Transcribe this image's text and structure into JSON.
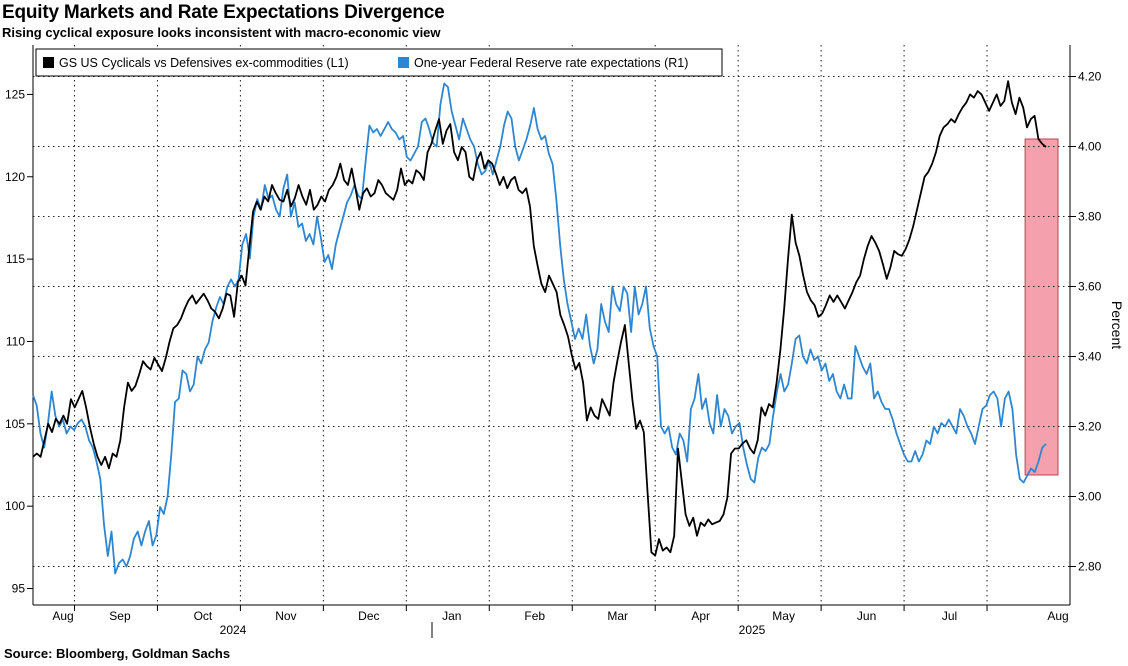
{
  "title": "Equity Markets and Rate Expectations Divergence",
  "subtitle": "Rising cyclical exposure looks inconsistent with macro-economic view",
  "source": "Source: Bloomberg, Goldman Sachs",
  "chart_data": {
    "type": "line",
    "x_tick_labels": [
      "Aug",
      "Sep",
      "Oct",
      "Nov",
      "Dec",
      "Jan",
      "Feb",
      "Mar",
      "Apr",
      "May",
      "Jun",
      "Jul",
      "Aug"
    ],
    "year_labels": [
      "2024",
      "2025"
    ],
    "left_axis": {
      "ticks": [
        95,
        100,
        105,
        110,
        115,
        120,
        125
      ],
      "ylim": [
        94,
        128
      ]
    },
    "right_axis": {
      "label": "Percent",
      "ticks": [
        "2.80",
        "3.00",
        "3.20",
        "3.40",
        "3.60",
        "3.80",
        "4.00",
        "4.20"
      ],
      "ylim": [
        2.69,
        4.29
      ]
    },
    "grid": true,
    "legend_position": "top-left",
    "highlight": {
      "x_start": 0.9615,
      "x_end": 1.0,
      "color": "#f4a0ad"
    },
    "series": [
      {
        "name": "GS US Cyclicals vs Defensives ex-commodities  (L1)",
        "axis": "left",
        "color": "#000000",
        "values": [
          103,
          103.2,
          103,
          104,
          105,
          104.5,
          105.3,
          105,
          105.5,
          105,
          106.5,
          106,
          106.5,
          107,
          106,
          104.8,
          103.8,
          103,
          102.5,
          103,
          102.3,
          103.2,
          103,
          104,
          106,
          107.5,
          107,
          107.3,
          108,
          108.8,
          108.5,
          108.3,
          109,
          108.6,
          108.2,
          109,
          110,
          110.8,
          111,
          111.4,
          112,
          112.5,
          112.8,
          112.3,
          112.6,
          112.9,
          112.5,
          112,
          111.8,
          111.4,
          112,
          112.9,
          112.8,
          111.5,
          113.6,
          114,
          113.4,
          115.7,
          117.9,
          118.5,
          118,
          118.8,
          118.5,
          119.5,
          119,
          118.6,
          118.5,
          119.2,
          118.2,
          118.7,
          119.5,
          118.8,
          118.3,
          119.2,
          118,
          118.3,
          118.8,
          118.5,
          119.2,
          119.5,
          120,
          120.8,
          119.8,
          119.5,
          120.5,
          119.3,
          118,
          119,
          119.3,
          118.8,
          119,
          119.8,
          119.5,
          119,
          118.8,
          118.6,
          119.2,
          120.5,
          119.5,
          119.8,
          119.6,
          120.4,
          120.2,
          119.8,
          121.5,
          122,
          122.8,
          123.5,
          122,
          122.8,
          123.2,
          121.5,
          121,
          121.8,
          121.5,
          120,
          119.8,
          121,
          121.5,
          120.5,
          121,
          120.8,
          120.2,
          119.5,
          120,
          119.3,
          119.8,
          120,
          119.2,
          119,
          119.3,
          118.2,
          115.8,
          114.6,
          113.5,
          113,
          114,
          113.5,
          113,
          111.6,
          111,
          110.3,
          109.2,
          108.3,
          108.7,
          107.5,
          105.2,
          106,
          105.5,
          105.3,
          106.5,
          106,
          105.5,
          107.5,
          108.8,
          110,
          111,
          108.7,
          106.4,
          104.7,
          105.2,
          104.5,
          100.8,
          97.2,
          97,
          98,
          97.3,
          97.5,
          97.2,
          98.2,
          103.5,
          101.5,
          99.5,
          98.8,
          99.3,
          98.2,
          99,
          98.8,
          99.2,
          98.9,
          99,
          99.1,
          99.5,
          100.5,
          103.2,
          103.5,
          103.5,
          103.8,
          104,
          103.5,
          103.2,
          104,
          106,
          105.5,
          106.2,
          106,
          107.5,
          109.5,
          112,
          115,
          117.7,
          116,
          115.2,
          114,
          113,
          112.5,
          112.2,
          111.5,
          111.7,
          112.2,
          112.8,
          112.4,
          112.8,
          112.4,
          112,
          112.5,
          113,
          113.6,
          114,
          115,
          115.8,
          116.4,
          116,
          115.5,
          114.7,
          113.8,
          114.5,
          115.5,
          115.3,
          115.2,
          115.6,
          116.2,
          117,
          118,
          119,
          120,
          120.3,
          120.8,
          121.5,
          122.5,
          123,
          123.2,
          123.5,
          123.3,
          123.8,
          124.2,
          124.5,
          125,
          124.8,
          125.2,
          125,
          124.5,
          124,
          124.5,
          125,
          124.3,
          124.6,
          125.8,
          124.5,
          123.8,
          124.8,
          124.2,
          123,
          123.5,
          123.7,
          122.3,
          122,
          121.8
        ]
      },
      {
        "name": "One-year Federal Reserve rate expectations (R1)",
        "axis": "right",
        "color": "#2e86d1",
        "values": [
          3.29,
          3.26,
          3.18,
          3.14,
          3.21,
          3.3,
          3.23,
          3.2,
          3.22,
          3.18,
          3.2,
          3.19,
          3.21,
          3.22,
          3.2,
          3.16,
          3.14,
          3.1,
          3.05,
          2.92,
          2.83,
          2.9,
          2.78,
          2.81,
          2.82,
          2.8,
          2.83,
          2.88,
          2.9,
          2.86,
          2.9,
          2.93,
          2.86,
          2.89,
          2.97,
          2.95,
          3.0,
          3.12,
          3.27,
          3.28,
          3.36,
          3.35,
          3.3,
          3.32,
          3.4,
          3.38,
          3.42,
          3.44,
          3.5,
          3.54,
          3.57,
          3.55,
          3.6,
          3.62,
          3.6,
          3.62,
          3.72,
          3.75,
          3.68,
          3.8,
          3.85,
          3.82,
          3.89,
          3.85,
          3.86,
          3.82,
          3.8,
          3.88,
          3.92,
          3.8,
          3.84,
          3.77,
          3.78,
          3.73,
          3.75,
          3.72,
          3.8,
          3.74,
          3.67,
          3.69,
          3.65,
          3.72,
          3.76,
          3.8,
          3.84,
          3.86,
          3.89,
          3.86,
          3.85,
          3.96,
          4.06,
          4.04,
          4.05,
          4.03,
          4.05,
          4.07,
          4.05,
          4.04,
          4.02,
          4.03,
          3.97,
          3.96,
          3.98,
          4.0,
          4.07,
          4.08,
          4.05,
          4.01,
          4.0,
          4.12,
          4.18,
          4.17,
          4.1,
          4.06,
          4.02,
          4.08,
          4.05,
          4.02,
          4.0,
          3.95,
          3.92,
          3.93,
          3.96,
          3.92,
          3.96,
          4.0,
          4.06,
          4.1,
          4.08,
          4.0,
          3.96,
          3.99,
          4.02,
          4.06,
          4.11,
          4.05,
          4.02,
          4.03,
          3.98,
          3.95,
          3.85,
          3.72,
          3.62,
          3.55,
          3.5,
          3.45,
          3.48,
          3.45,
          3.52,
          3.43,
          3.38,
          3.42,
          3.55,
          3.5,
          3.47,
          3.6,
          3.55,
          3.53,
          3.6,
          3.58,
          3.47,
          3.6,
          3.52,
          3.55,
          3.6,
          3.48,
          3.43,
          3.4,
          3.2,
          3.18,
          3.2,
          3.14,
          3.12,
          3.18,
          3.16,
          3.1,
          3.25,
          3.28,
          3.35,
          3.25,
          3.28,
          3.21,
          3.18,
          3.29,
          3.2,
          3.25,
          3.23,
          3.18,
          3.2,
          3.21,
          3.14,
          3.09,
          3.05,
          3.04,
          3.11,
          3.14,
          3.13,
          3.15,
          3.23,
          3.3,
          3.35,
          3.3,
          3.32,
          3.38,
          3.45,
          3.46,
          3.4,
          3.38,
          3.42,
          3.39,
          3.4,
          3.36,
          3.38,
          3.33,
          3.35,
          3.3,
          3.28,
          3.32,
          3.28,
          3.28,
          3.43,
          3.4,
          3.37,
          3.35,
          3.38,
          3.28,
          3.3,
          3.27,
          3.25,
          3.25,
          3.22,
          3.18,
          3.15,
          3.12,
          3.1,
          3.1,
          3.13,
          3.1,
          3.12,
          3.16,
          3.15,
          3.2,
          3.18,
          3.21,
          3.2,
          3.22,
          3.2,
          3.18,
          3.25,
          3.23,
          3.2,
          3.18,
          3.15,
          3.2,
          3.25,
          3.26,
          3.29,
          3.3,
          3.28,
          3.2,
          3.28,
          3.3,
          3.25,
          3.12,
          3.05,
          3.04,
          3.06,
          3.08,
          3.07,
          3.1,
          3.14,
          3.15
        ]
      }
    ]
  }
}
